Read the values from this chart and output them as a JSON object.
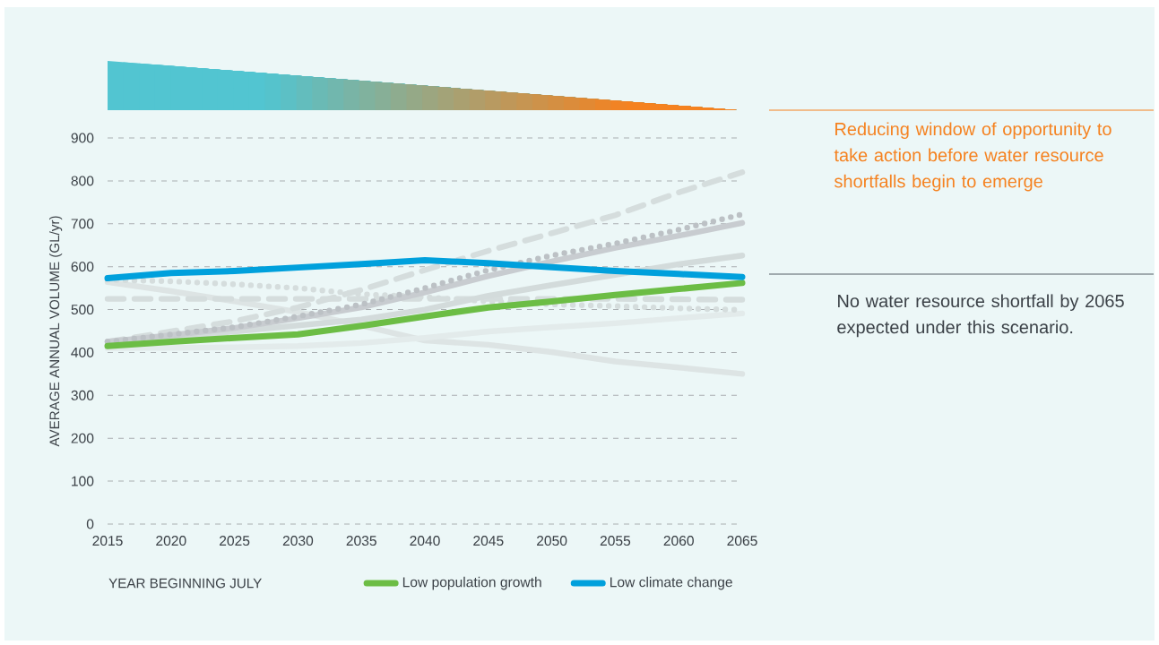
{
  "chart_data": {
    "type": "line",
    "xlabel": "YEAR BEGINNING JULY",
    "ylabel": "AVERAGE ANNUAL VOLUME (GL/yr)",
    "x": [
      2015,
      2020,
      2025,
      2030,
      2035,
      2040,
      2045,
      2050,
      2055,
      2060,
      2065
    ],
    "xlim": [
      2015,
      2065
    ],
    "xticks": [
      2015,
      2020,
      2025,
      2030,
      2035,
      2040,
      2045,
      2050,
      2055,
      2060,
      2065
    ],
    "ylim": [
      0,
      900
    ],
    "yticks": [
      0,
      100,
      200,
      300,
      400,
      500,
      600,
      700,
      800,
      900
    ],
    "grid": "y",
    "legend": "bottom",
    "marker": "none",
    "series": [
      {
        "color": "#dde4e4",
        "line_style": "solid",
        "values": [
          564,
          543,
          519,
          494,
          463,
          428,
          418,
          401,
          379,
          365,
          350
        ]
      },
      {
        "color": "#e3ebeb",
        "line_style": "solid",
        "values": [
          410,
          411,
          412,
          415,
          422,
          434,
          449,
          459,
          468,
          480,
          491
        ]
      },
      {
        "color": "#d5dddd",
        "line_style": "dashed",
        "values": [
          525,
          525,
          525,
          525,
          525,
          525,
          525,
          525,
          525,
          524,
          523
        ]
      },
      {
        "color": "#d5dddd",
        "line_style": "dotted",
        "values": [
          569,
          566,
          559,
          550,
          536,
          529,
          519,
          512,
          508,
          503,
          499
        ]
      },
      {
        "color": "#d3dbdb",
        "line_style": "solid",
        "values": [
          425,
          435,
          449,
          463,
          477,
          500,
          532,
          557,
          581,
          606,
          626
        ]
      },
      {
        "color": "#d5dddd",
        "line_style": "dashed",
        "values": [
          425,
          449,
          473,
          505,
          546,
          592,
          637,
          678,
          720,
          773,
          820
        ]
      },
      {
        "color": "#c8ccd0",
        "line_style": "solid",
        "values": [
          425,
          440,
          457,
          480,
          505,
          540,
          578,
          612,
          644,
          672,
          702
        ]
      },
      {
        "color": "#bcc1c5",
        "line_style": "dotted",
        "values": [
          425,
          442,
          459,
          484,
          512,
          550,
          592,
          626,
          654,
          686,
          722
        ]
      },
      {
        "name": "Low population growth",
        "color": "#6cbd45",
        "line_style": "solid",
        "values": [
          415,
          425,
          434,
          442,
          462,
          484,
          505,
          519,
          534,
          548,
          562
        ]
      },
      {
        "name": "Low climate change",
        "color": "#00a0dc",
        "line_style": "solid",
        "values": [
          573,
          585,
          590,
          598,
          606,
          615,
          608,
          599,
          590,
          583,
          576
        ]
      }
    ],
    "annotations": [
      "Reducing window of opportunity to take action before water resource shortfalls begin to emerge",
      "No water resource shortfall by 2065 expected under this scenario."
    ]
  }
}
